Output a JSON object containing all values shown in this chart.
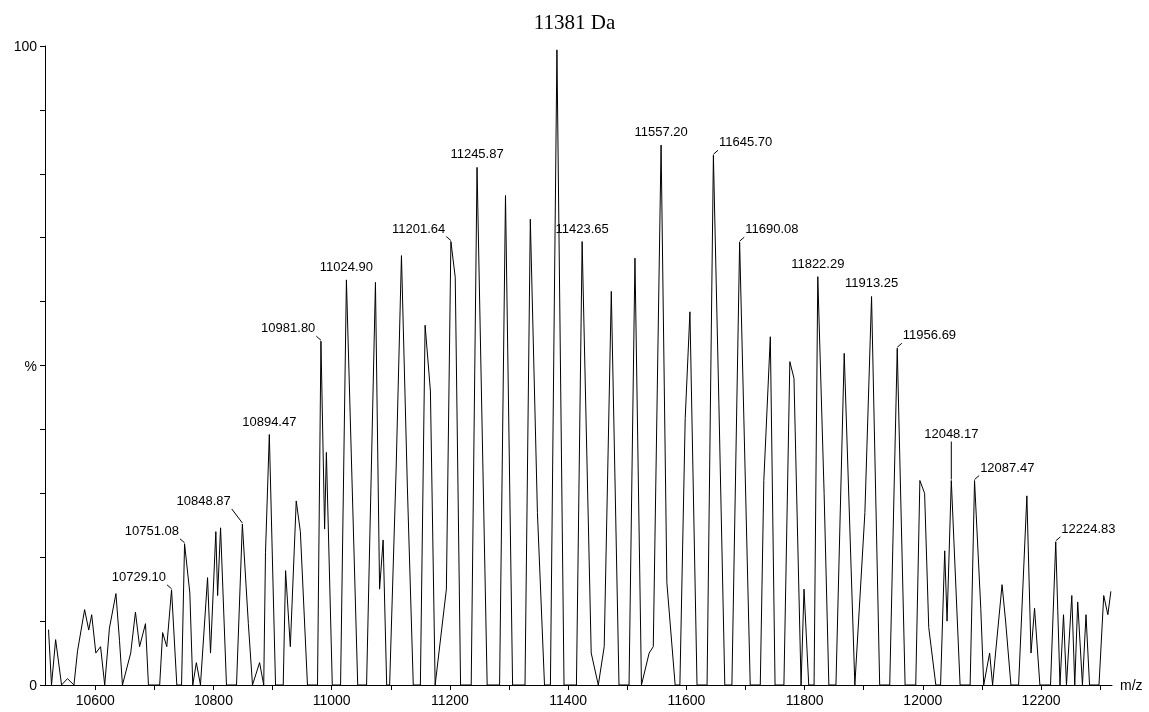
{
  "chart_data": {
    "type": "line",
    "title": "11381 Da",
    "xlabel": "m/z",
    "color": "#000000",
    "marker": "none",
    "line_style": "solid",
    "grid": false,
    "xlim": [
      10515,
      12320
    ],
    "xticks": [
      10600,
      {
        "value": 10700,
        "label": null
      },
      10800,
      {
        "value": 10900,
        "label": null
      },
      11000,
      {
        "value": 11100,
        "label": null
      },
      11200,
      {
        "value": 11300,
        "label": null
      },
      11400,
      {
        "value": 11500,
        "label": null
      },
      11600,
      {
        "value": 11700,
        "label": null
      },
      11800,
      {
        "value": 11900,
        "label": null
      },
      12000,
      {
        "value": 12100,
        "label": null
      },
      12200,
      {
        "value": 12300,
        "label": null
      }
    ],
    "ylim": [
      0,
      100
    ],
    "yticks": [
      0,
      {
        "value": 10,
        "label": null
      },
      {
        "value": 20,
        "label": null
      },
      {
        "value": 30,
        "label": null
      },
      {
        "value": 40,
        "label": null
      },
      {
        "value": 50,
        "label": "%"
      },
      {
        "value": 60,
        "label": null
      },
      {
        "value": 70,
        "label": null
      },
      {
        "value": 80,
        "label": null
      },
      {
        "value": 90,
        "label": null
      },
      100
    ],
    "x": [
      10521,
      10526,
      10533,
      10543,
      10553,
      10564,
      10570,
      10582,
      10589,
      10594,
      10601,
      10609,
      10616,
      10624,
      10635,
      10641,
      10646,
      10660,
      10668,
      10675,
      10685,
      10690,
      10709,
      10714,
      10721,
      10729.1,
      10738,
      10746,
      10751.08,
      10760,
      10765,
      10771,
      10778,
      10790,
      10795,
      10804,
      10807,
      10812,
      10822,
      10839,
      10848.87,
      10859,
      10866,
      10878,
      10885,
      10888,
      10894.47,
      10905,
      10918,
      10922,
      10930,
      10940,
      10947,
      10959,
      10976,
      10981.8,
      10988,
      10991,
      11001,
      11015,
      11024.9,
      11044,
      11059,
      11074,
      11081,
      11087,
      11093,
      11098,
      11109,
      11118,
      11128,
      11138,
      11150,
      11158,
      11167,
      11175,
      11194,
      11201.64,
      11209,
      11218,
      11236,
      11245.87,
      11263,
      11284,
      11294,
      11306,
      11327,
      11336,
      11348,
      11360,
      11370,
      11381,
      11393,
      11414,
      11423.65,
      11439,
      11451,
      11461,
      11473,
      11486,
      11503,
      11513,
      11524,
      11537,
      11544,
      11557.2,
      11567,
      11581,
      11589,
      11598,
      11606,
      11618,
      11635,
      11645.7,
      11655,
      11665,
      11677,
      11690.08,
      11708,
      11725,
      11731,
      11742,
      11750,
      11765,
      11775,
      11782,
      11794,
      11799,
      11807,
      11816,
      11822.29,
      11833,
      11841,
      11853,
      11867,
      11885,
      11902,
      11913.25,
      11927,
      11944,
      11956.69,
      11970,
      11988,
      11995,
      12003,
      12010,
      12022,
      12030,
      12037,
      12041,
      12048.17,
      12063,
      12080,
      12087.47,
      12098,
      12103,
      12113,
      12118,
      12122,
      12134,
      12140,
      12149,
      12162,
      12176,
      12183,
      12189,
      12198,
      12216,
      12224.83,
      12232,
      12238,
      12243,
      12252,
      12257,
      12262,
      12270,
      12276,
      12282,
      12298,
      12306,
      12313,
      12318
    ],
    "values": [
      8.6,
      0,
      7.1,
      0,
      1,
      0,
      5.3,
      11.8,
      8.6,
      11,
      5,
      6,
      0,
      8.9,
      14.3,
      7,
      0,
      5,
      11.4,
      6,
      9.6,
      0,
      0,
      8.2,
      6,
      14.9,
      0,
      0,
      22.1,
      14.4,
      0,
      3.5,
      0,
      16.8,
      5,
      24,
      14,
      24.6,
      0,
      0,
      25.2,
      9.6,
      0,
      3.5,
      0,
      20.7,
      39.2,
      0,
      0,
      17.9,
      6,
      28.8,
      24,
      0,
      0,
      53.8,
      24.4,
      36.4,
      0,
      0,
      63.4,
      0,
      0,
      63,
      15,
      22.7,
      0,
      0,
      33.8,
      67.2,
      31,
      0,
      0,
      56.3,
      46,
      0,
      15,
      69.4,
      63.8,
      0,
      0,
      81,
      0,
      0,
      76.6,
      0,
      0,
      72.9,
      27,
      0,
      0,
      99.4,
      0,
      0,
      69.4,
      5,
      0,
      6,
      61.6,
      0,
      0,
      66.8,
      0,
      5,
      6,
      84.5,
      16,
      0,
      0,
      41.7,
      58.4,
      0,
      0,
      82.9,
      44,
      0,
      0,
      69.3,
      0,
      0,
      32,
      54.5,
      0,
      0,
      50.6,
      48,
      0,
      15,
      0,
      0,
      63.9,
      30,
      0,
      0,
      51.9,
      0,
      27,
      60.8,
      0,
      0,
      52.7,
      0,
      0,
      32,
      30,
      9,
      0,
      0,
      21,
      10,
      32,
      0,
      0,
      32,
      12,
      0,
      5,
      0,
      4,
      15.7,
      10,
      0,
      0,
      29.6,
      5,
      12,
      0,
      0,
      22.4,
      0,
      11,
      0,
      14,
      0,
      13,
      0,
      11,
      0,
      0,
      14,
      11,
      14.6
    ],
    "annotations": [
      {
        "text": "10729.10",
        "x": 10729.1,
        "y": 14.9
      },
      {
        "text": "10751.08",
        "x": 10751.08,
        "y": 22.1
      },
      {
        "text": "10848.87",
        "x": 10848.87,
        "y": 25.2
      },
      {
        "text": "10894.47",
        "x": 10894.47,
        "y": 39.2
      },
      {
        "text": "10981.80",
        "x": 10981.8,
        "y": 53.8
      },
      {
        "text": "11024.90",
        "x": 11024.9,
        "y": 63.4
      },
      {
        "text": "11201.64",
        "x": 11201.64,
        "y": 69.4
      },
      {
        "text": "11245.87",
        "x": 11245.87,
        "y": 81
      },
      {
        "text": "11423.65",
        "x": 11423.65,
        "y": 69.4
      },
      {
        "text": "11557.20",
        "x": 11557.2,
        "y": 84.5
      },
      {
        "text": "11645.70",
        "x": 11645.7,
        "y": 82.9
      },
      {
        "text": "11690.08",
        "x": 11690.08,
        "y": 69.3
      },
      {
        "text": "11822.29",
        "x": 11822.29,
        "y": 63.9
      },
      {
        "text": "11913.25",
        "x": 11913.25,
        "y": 60.8
      },
      {
        "text": "11956.69",
        "x": 11956.69,
        "y": 52.7
      },
      {
        "text": "12048.17",
        "x": 12048.17,
        "y": 32
      },
      {
        "text": "12087.47",
        "x": 12087.47,
        "y": 32
      },
      {
        "text": "12224.83",
        "x": 12224.83,
        "y": 22.4
      }
    ]
  }
}
